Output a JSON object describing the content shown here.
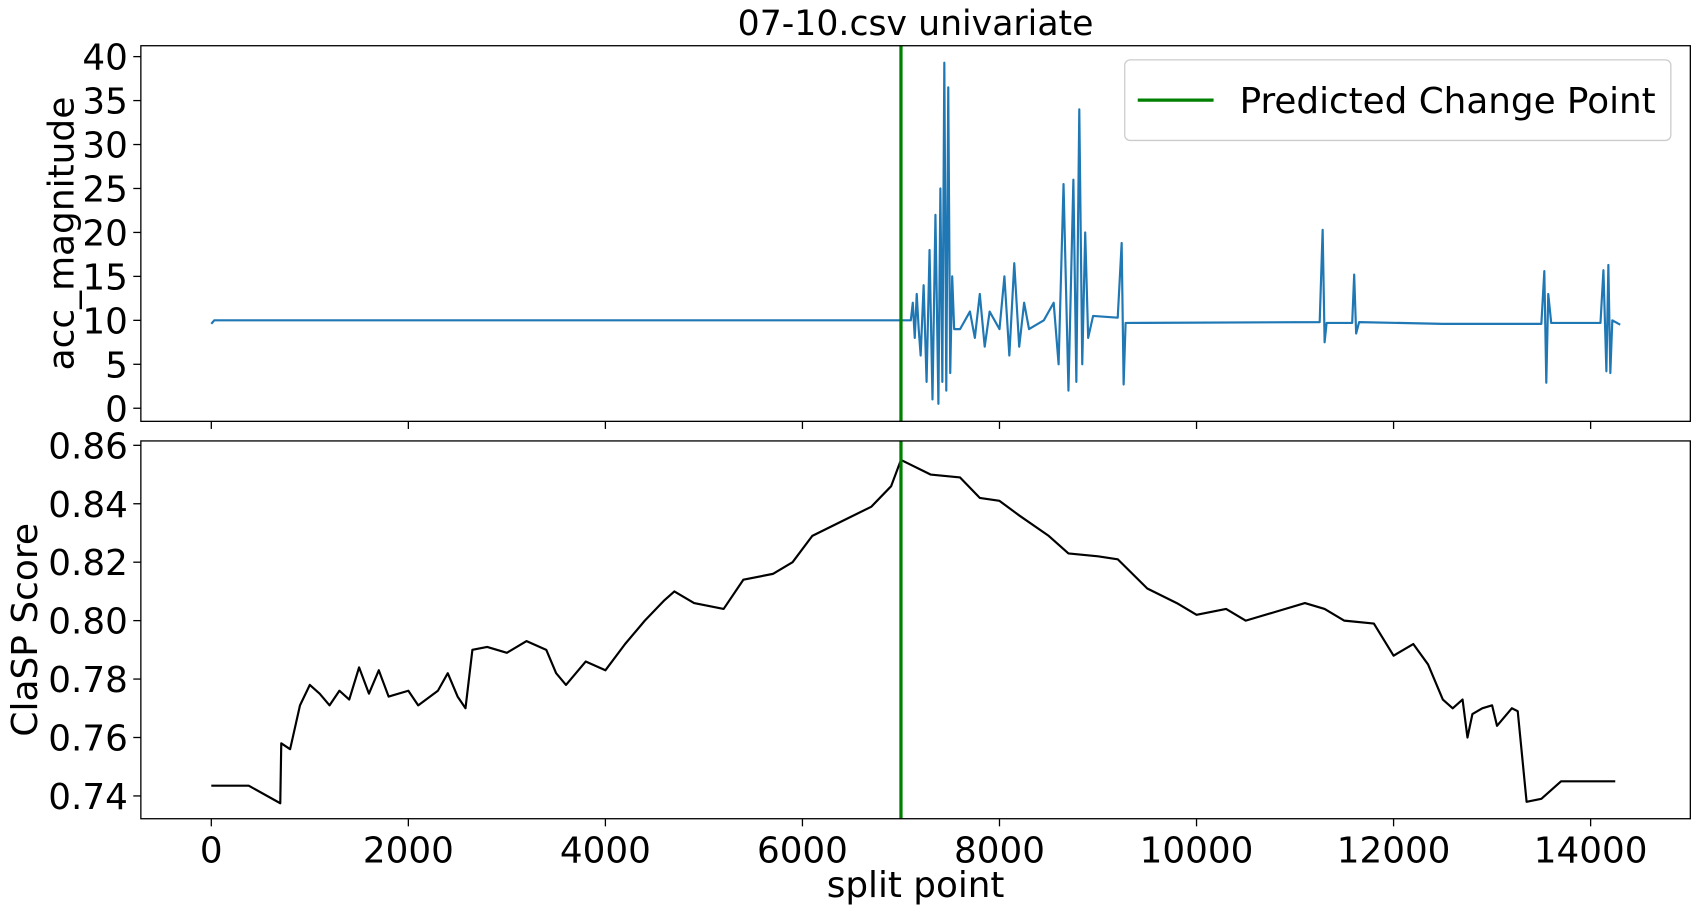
{
  "chart_data": [
    {
      "type": "line",
      "title": "07-10.csv univariate",
      "ylabel": "acc_magnitude",
      "x": [
        0,
        30,
        7100,
        7120,
        7140,
        7160,
        7180,
        7200,
        7230,
        7260,
        7290,
        7320,
        7350,
        7380,
        7400,
        7420,
        7440,
        7460,
        7480,
        7500,
        7520,
        7540,
        7600,
        7700,
        7750,
        7800,
        7850,
        7900,
        8000,
        8050,
        8100,
        8150,
        8200,
        8250,
        8300,
        8450,
        8550,
        8600,
        8650,
        8700,
        8750,
        8780,
        8810,
        8840,
        8870,
        8900,
        8950,
        9200,
        9240,
        9260,
        9280,
        11250,
        11280,
        11300,
        11320,
        11580,
        11600,
        11620,
        11650,
        12500,
        13500,
        13530,
        13550,
        13570,
        13600,
        14100,
        14130,
        14160,
        14180,
        14200,
        14220,
        14300
      ],
      "values": [
        9.6,
        10,
        10,
        12,
        8,
        13,
        9,
        6,
        14,
        3,
        18,
        1,
        22,
        0.5,
        25,
        3,
        39.3,
        2,
        36.5,
        4,
        15,
        9,
        9,
        11,
        8,
        13,
        7,
        11,
        9,
        15,
        6,
        16.5,
        7,
        12,
        9,
        10,
        12,
        5,
        25.5,
        2,
        26,
        3,
        34,
        5,
        20,
        8,
        10.5,
        10.3,
        18.8,
        2.7,
        9.7,
        9.8,
        20.3,
        7.5,
        9.7,
        9.7,
        15.2,
        8.5,
        9.8,
        9.6,
        9.6,
        15.6,
        2.9,
        13,
        9.7,
        9.7,
        15.7,
        4.2,
        16.3,
        4,
        10,
        9.5
      ],
      "color": "#1f77b4",
      "vline": {
        "name": "Predicted Change Point",
        "x": 7000,
        "color": "#008000"
      },
      "legend": "upper right",
      "xlim": [
        -715,
        15012
      ],
      "xticks": [
        0,
        2000,
        4000,
        6000,
        8000,
        10000,
        12000,
        14000
      ],
      "ylim": [
        -1.49,
        41.24
      ],
      "yticks": [
        0,
        5,
        10,
        15,
        20,
        25,
        30,
        35,
        40
      ]
    },
    {
      "type": "line",
      "xlabel": "split point",
      "ylabel": "ClaSP Score",
      "x": [
        0,
        380,
        700,
        710,
        800,
        900,
        1000,
        1100,
        1200,
        1300,
        1400,
        1500,
        1600,
        1700,
        1800,
        2000,
        2100,
        2300,
        2400,
        2500,
        2580,
        2650,
        2800,
        3000,
        3200,
        3400,
        3500,
        3600,
        3800,
        4000,
        4200,
        4400,
        4600,
        4700,
        4900,
        5200,
        5400,
        5700,
        5900,
        6100,
        6400,
        6700,
        6900,
        7000,
        7300,
        7600,
        7800,
        8000,
        8200,
        8500,
        8700,
        9000,
        9200,
        9500,
        9800,
        10000,
        10300,
        10500,
        10800,
        11100,
        11300,
        11500,
        11800,
        12000,
        12200,
        12350,
        12500,
        12600,
        12700,
        12750,
        12800,
        12900,
        13000,
        13050,
        13200,
        13260,
        13350,
        13500,
        13700,
        14250
      ],
      "values": [
        0.7435,
        0.7435,
        0.7375,
        0.758,
        0.756,
        0.771,
        0.778,
        0.775,
        0.771,
        0.776,
        0.773,
        0.784,
        0.775,
        0.783,
        0.774,
        0.776,
        0.771,
        0.776,
        0.782,
        0.774,
        0.77,
        0.79,
        0.791,
        0.789,
        0.793,
        0.79,
        0.782,
        0.778,
        0.786,
        0.783,
        0.792,
        0.8,
        0.807,
        0.81,
        0.806,
        0.804,
        0.814,
        0.816,
        0.82,
        0.829,
        0.834,
        0.839,
        0.846,
        0.855,
        0.85,
        0.849,
        0.842,
        0.841,
        0.836,
        0.829,
        0.823,
        0.822,
        0.821,
        0.811,
        0.806,
        0.802,
        0.804,
        0.8,
        0.803,
        0.806,
        0.804,
        0.8,
        0.799,
        0.788,
        0.792,
        0.785,
        0.773,
        0.77,
        0.773,
        0.76,
        0.768,
        0.77,
        0.771,
        0.764,
        0.77,
        0.769,
        0.738,
        0.739,
        0.745,
        0.745
      ],
      "color": "#000000",
      "vline": {
        "x": 7000,
        "color": "#008000"
      },
      "xlim": [
        -715,
        15012
      ],
      "xticks": [
        0,
        2000,
        4000,
        6000,
        8000,
        10000,
        12000,
        14000
      ],
      "ylim": [
        0.7322,
        0.8615
      ],
      "yticks": [
        0.74,
        0.76,
        0.78,
        {
          "value": 0.8,
          "label": "0.80"
        },
        0.82,
        0.84,
        0.86
      ]
    }
  ]
}
